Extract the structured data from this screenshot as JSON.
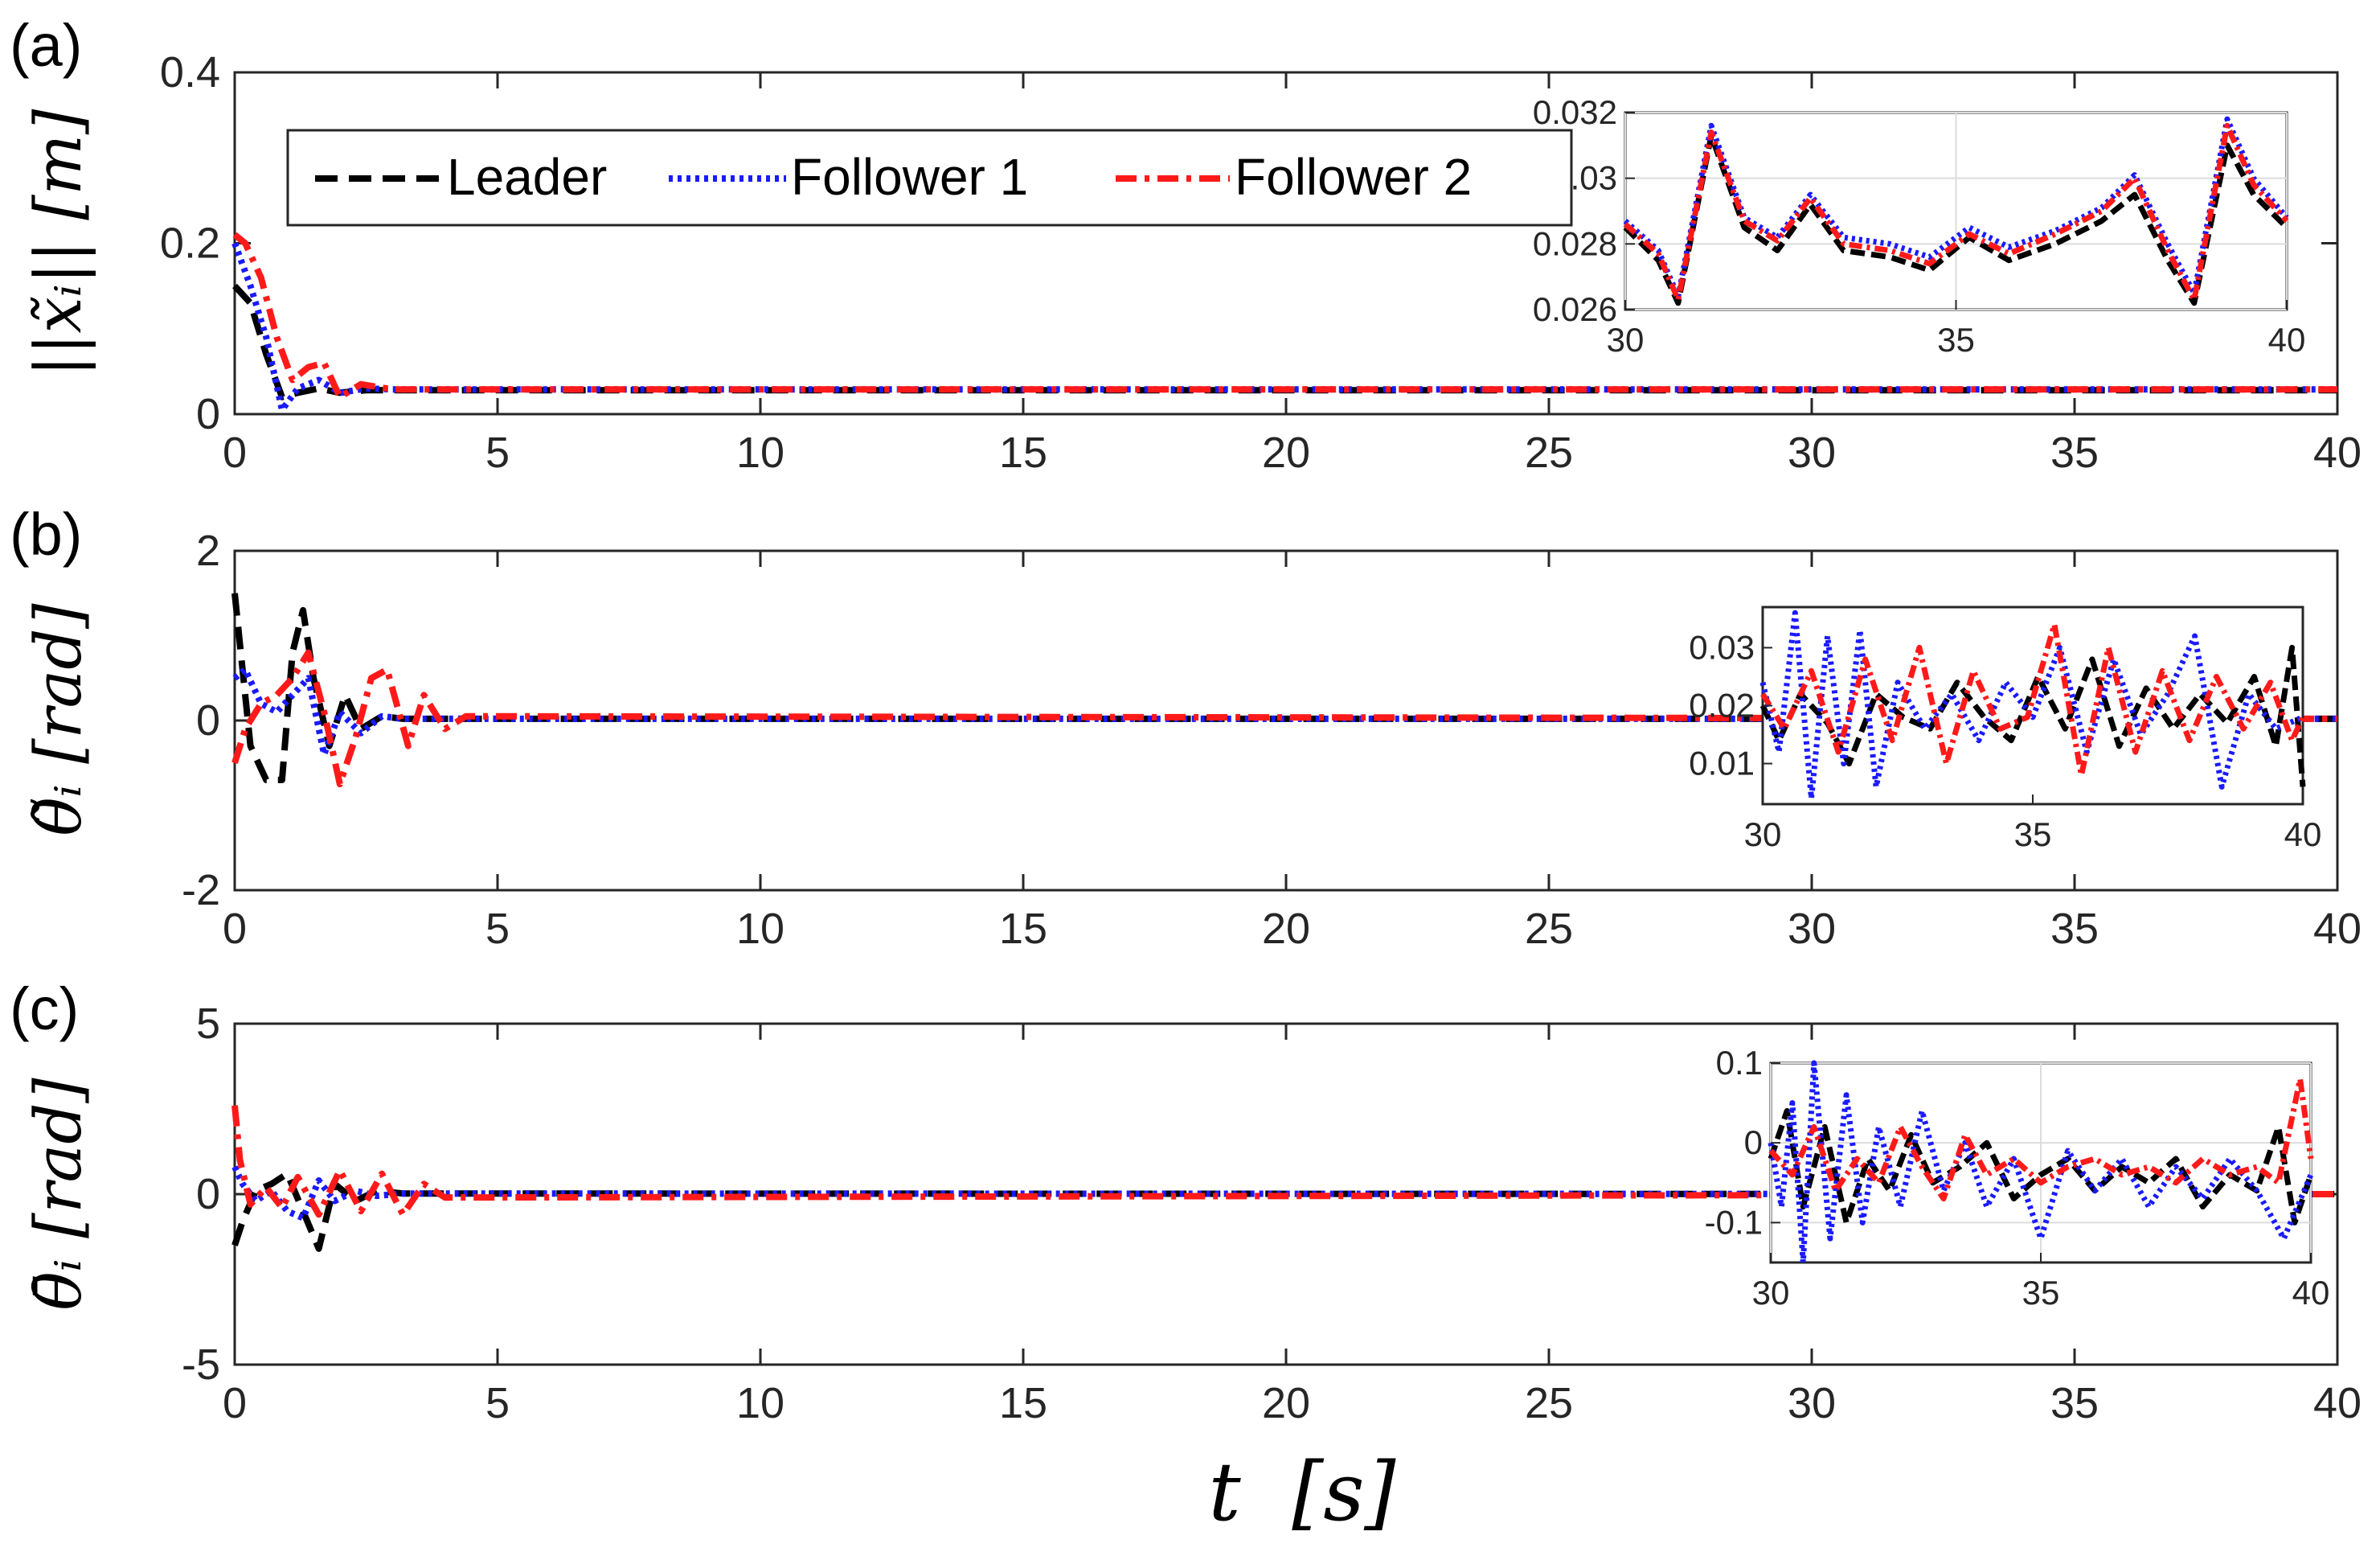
{
  "figure": {
    "xlabel": "t  [s]",
    "legend": {
      "placement": "top-left",
      "entries": [
        "Leader",
        "Follower 1",
        "Follower 2"
      ]
    }
  },
  "colors": {
    "leader": "#000000",
    "follower1": "#1a1aff",
    "follower2": "#ff1a1a",
    "axis": "#262626",
    "grid": "#dcdcdc"
  },
  "chart_data": [
    {
      "type": "line",
      "panel_label": "(a)",
      "ylabel": "||x̃ᵢ|| [m]",
      "xlim": [
        0,
        40
      ],
      "ylim": [
        0,
        0.4
      ],
      "xticks": [
        "0",
        "5",
        "10",
        "15",
        "20",
        "25",
        "30",
        "35",
        "40"
      ],
      "yticks": [
        "0",
        "0.2",
        "0.4"
      ],
      "series": [
        {
          "name": "Leader",
          "style": "dashed",
          "x": [
            0,
            0.3,
            0.6,
            0.9,
            1.2,
            1.6,
            2.0,
            2.5,
            3,
            40
          ],
          "y": [
            0.15,
            0.13,
            0.07,
            0.02,
            0.025,
            0.03,
            0.025,
            0.028,
            0.028,
            0.028
          ]
        },
        {
          "name": "Follower 1",
          "style": "dotted",
          "x": [
            0,
            0.3,
            0.6,
            0.9,
            1.2,
            1.6,
            2.0,
            2.5,
            3,
            40
          ],
          "y": [
            0.2,
            0.15,
            0.09,
            0.005,
            0.03,
            0.04,
            0.025,
            0.03,
            0.029,
            0.029
          ]
        },
        {
          "name": "Follower 2",
          "style": "dashdot",
          "x": [
            0,
            0.2,
            0.5,
            0.8,
            1.1,
            1.4,
            1.7,
            2.0,
            2.4,
            3,
            40
          ],
          "y": [
            0.21,
            0.2,
            0.16,
            0.09,
            0.04,
            0.055,
            0.06,
            0.02,
            0.035,
            0.029,
            0.029
          ]
        }
      ],
      "inset": {
        "xlim": [
          30,
          40
        ],
        "ylim": [
          0.026,
          0.032
        ],
        "xticks": [
          "30",
          "35",
          "40"
        ],
        "yticks": [
          "0.026",
          "0.028",
          "0.03",
          "0.032"
        ],
        "grid": true,
        "series": [
          {
            "name": "Leader",
            "x": [
              30,
              30.5,
              30.8,
              31.3,
              31.8,
              32.3,
              32.8,
              33.3,
              34,
              34.6,
              35.2,
              35.8,
              36.5,
              37.2,
              37.7,
              38.2,
              38.6,
              39.1,
              39.5,
              40
            ],
            "y": [
              0.0285,
              0.0275,
              0.0262,
              0.0313,
              0.0285,
              0.0278,
              0.0292,
              0.0278,
              0.0276,
              0.0272,
              0.0282,
              0.0275,
              0.028,
              0.0287,
              0.0295,
              0.0275,
              0.0262,
              0.031,
              0.0295,
              0.0285
            ]
          },
          {
            "name": "Follower 1",
            "x": [
              30,
              30.5,
              30.8,
              31.3,
              31.8,
              32.3,
              32.8,
              33.3,
              34,
              34.6,
              35.2,
              35.8,
              36.5,
              37.2,
              37.7,
              38.2,
              38.6,
              39.1,
              39.5,
              40
            ],
            "y": [
              0.0287,
              0.0278,
              0.0264,
              0.0316,
              0.0288,
              0.0282,
              0.0295,
              0.0282,
              0.028,
              0.0276,
              0.0285,
              0.0279,
              0.0284,
              0.0291,
              0.0301,
              0.028,
              0.0265,
              0.0318,
              0.03,
              0.0288
            ]
          },
          {
            "name": "Follower 2",
            "x": [
              30,
              30.5,
              30.8,
              31.3,
              31.8,
              32.3,
              32.8,
              33.3,
              34,
              34.6,
              35.2,
              35.8,
              36.5,
              37.2,
              37.7,
              38.2,
              38.6,
              39.1,
              39.5,
              40
            ],
            "y": [
              0.0286,
              0.0277,
              0.0263,
              0.0314,
              0.0287,
              0.0281,
              0.0294,
              0.028,
              0.0278,
              0.0274,
              0.0283,
              0.0277,
              0.0283,
              0.029,
              0.03,
              0.0278,
              0.0263,
              0.0316,
              0.0298,
              0.0287
            ]
          }
        ]
      }
    },
    {
      "type": "line",
      "panel_label": "(b)",
      "ylabel": "θ̃ᵢ [rad]",
      "xlim": [
        0,
        40
      ],
      "ylim": [
        -2,
        2
      ],
      "xticks": [
        "0",
        "5",
        "10",
        "15",
        "20",
        "25",
        "30",
        "35",
        "40"
      ],
      "yticks": [
        "-2",
        "0",
        "2"
      ],
      "series": [
        {
          "name": "Leader",
          "style": "dashed",
          "x": [
            0,
            0.1,
            0.3,
            0.6,
            0.9,
            1.1,
            1.3,
            1.5,
            1.8,
            2.1,
            2.4,
            2.8,
            3.2,
            40
          ],
          "y": [
            1.5,
            0.9,
            -0.3,
            -0.7,
            -0.7,
            0.8,
            1.3,
            0.5,
            -0.3,
            0.3,
            -0.1,
            0.05,
            0.02,
            0.02
          ]
        },
        {
          "name": "Follower 1",
          "style": "dotted",
          "x": [
            0,
            0.2,
            0.5,
            0.8,
            1.1,
            1.4,
            1.7,
            2.0,
            2.4,
            2.8,
            3.2,
            40
          ],
          "y": [
            0.5,
            0.6,
            0.2,
            0.1,
            0.3,
            0.5,
            -0.4,
            0.1,
            -0.15,
            0.05,
            0.02,
            0.02
          ]
        },
        {
          "name": "Follower 2",
          "style": "dashdot",
          "x": [
            0,
            0.2,
            0.5,
            0.8,
            1.1,
            1.4,
            1.7,
            2.0,
            2.3,
            2.6,
            2.9,
            3.3,
            3.6,
            4.0,
            4.4,
            40
          ],
          "y": [
            -0.5,
            -0.1,
            0.2,
            0.3,
            0.5,
            0.8,
            0.1,
            -0.75,
            -0.2,
            0.5,
            0.6,
            -0.3,
            0.3,
            -0.1,
            0.05,
            0.02
          ]
        }
      ],
      "inset": {
        "xlim": [
          30,
          40
        ],
        "ylim": [
          0.003,
          0.037
        ],
        "xticks": [
          "30",
          "35",
          "40"
        ],
        "yticks": [
          "0.01",
          "0.02",
          "0.03"
        ],
        "grid": false,
        "series": [
          {
            "name": "Leader",
            "x": [
              30,
              30.3,
              30.7,
              31.2,
              31.6,
              32.1,
              32.6,
              33.1,
              33.6,
              34.1,
              34.6,
              35.1,
              35.6,
              36.1,
              36.6,
              37.1,
              37.6,
              38.1,
              38.6,
              39.1,
              39.5,
              39.8,
              40
            ],
            "y": [
              0.02,
              0.014,
              0.022,
              0.017,
              0.01,
              0.022,
              0.018,
              0.016,
              0.024,
              0.018,
              0.014,
              0.025,
              0.016,
              0.028,
              0.013,
              0.023,
              0.016,
              0.022,
              0.017,
              0.025,
              0.013,
              0.03,
              0.006
            ]
          },
          {
            "name": "Follower 1",
            "x": [
              30,
              30.3,
              30.6,
              30.9,
              31.2,
              31.5,
              31.8,
              32.1,
              32.5,
              33,
              33.5,
              34,
              34.5,
              35,
              35.5,
              36,
              36.5,
              37,
              37.5,
              38,
              38.5,
              39,
              39.5,
              40
            ],
            "y": [
              0.024,
              0.012,
              0.036,
              0.004,
              0.032,
              0.01,
              0.033,
              0.006,
              0.024,
              0.016,
              0.022,
              0.014,
              0.024,
              0.018,
              0.03,
              0.012,
              0.028,
              0.015,
              0.022,
              0.032,
              0.006,
              0.022,
              0.016,
              0.018
            ]
          },
          {
            "name": "Follower 2",
            "x": [
              30,
              30.4,
              30.9,
              31.4,
              31.9,
              32.4,
              32.9,
              33.4,
              33.9,
              34.4,
              34.9,
              35.4,
              35.9,
              36.4,
              36.9,
              37.4,
              37.9,
              38.4,
              38.9,
              39.4,
              39.8,
              40
            ],
            "y": [
              0.022,
              0.016,
              0.026,
              0.012,
              0.028,
              0.014,
              0.03,
              0.01,
              0.026,
              0.016,
              0.018,
              0.034,
              0.008,
              0.03,
              0.012,
              0.026,
              0.014,
              0.025,
              0.016,
              0.024,
              0.014,
              0.018
            ]
          }
        ]
      }
    },
    {
      "type": "line",
      "panel_label": "(c)",
      "ylabel": "θ̄ᵢ [rad]",
      "xlim": [
        0,
        40
      ],
      "ylim": [
        -5,
        5
      ],
      "xticks": [
        "0",
        "5",
        "10",
        "15",
        "20",
        "25",
        "30",
        "35",
        "40"
      ],
      "yticks": [
        "-5",
        "0",
        "5"
      ],
      "series": [
        {
          "name": "Leader",
          "style": "dashed",
          "x": [
            0,
            0.15,
            0.4,
            0.7,
            1.0,
            1.3,
            1.6,
            1.9,
            2.3,
            2.7,
            3.2,
            40
          ],
          "y": [
            -1.5,
            -0.8,
            0.1,
            0.3,
            0.6,
            -0.5,
            -1.6,
            0.3,
            -0.2,
            0.1,
            0.02,
            0.0
          ]
        },
        {
          "name": "Follower 1",
          "style": "dotted",
          "x": [
            0,
            0.15,
            0.4,
            0.7,
            1.0,
            1.3,
            1.6,
            1.9,
            2.3,
            2.7,
            3.2,
            40
          ],
          "y": [
            0.8,
            0.3,
            -0.2,
            0.1,
            -0.5,
            -0.7,
            0.4,
            -0.2,
            0.1,
            -0.05,
            0.02,
            0.0
          ]
        },
        {
          "name": "Follower 2",
          "style": "dashdot",
          "x": [
            0,
            0.1,
            0.3,
            0.6,
            0.9,
            1.2,
            1.6,
            2.0,
            2.4,
            2.8,
            3.2,
            3.6,
            4.0,
            40
          ],
          "y": [
            2.6,
            1.0,
            -0.3,
            0.2,
            -0.4,
            0.5,
            -0.6,
            0.7,
            -0.5,
            0.6,
            -0.6,
            0.3,
            -0.1,
            0.0
          ]
        }
      ],
      "inset": {
        "xlim": [
          30,
          40
        ],
        "ylim": [
          -0.15,
          0.1
        ],
        "xticks": [
          "30",
          "35",
          "40"
        ],
        "yticks": [
          "-0.1",
          "0",
          "0.1"
        ],
        "grid": true,
        "series": [
          {
            "name": "Leader",
            "x": [
              30,
              30.3,
              30.6,
              31,
              31.4,
              31.8,
              32.2,
              32.6,
              33,
              33.5,
              34,
              34.5,
              35,
              35.5,
              36,
              36.5,
              37,
              37.5,
              38,
              38.5,
              39,
              39.4,
              39.7,
              40
            ],
            "y": [
              -0.02,
              0.04,
              -0.08,
              0.02,
              -0.1,
              -0.02,
              -0.06,
              0.01,
              -0.05,
              -0.03,
              0.0,
              -0.07,
              -0.04,
              -0.02,
              -0.06,
              -0.03,
              -0.05,
              -0.02,
              -0.08,
              -0.04,
              -0.06,
              0.02,
              -0.1,
              -0.04
            ]
          },
          {
            "name": "Follower 1",
            "x": [
              30,
              30.2,
              30.4,
              30.6,
              30.8,
              31.1,
              31.4,
              31.7,
              32,
              32.4,
              32.8,
              33.2,
              33.6,
              34,
              34.5,
              35,
              35.5,
              36,
              36.5,
              37,
              37.5,
              38,
              38.5,
              39,
              39.5,
              40
            ],
            "y": [
              0.0,
              -0.08,
              0.05,
              -0.15,
              0.1,
              -0.12,
              0.06,
              -0.1,
              0.02,
              -0.08,
              0.04,
              -0.06,
              0.0,
              -0.08,
              -0.02,
              -0.12,
              -0.01,
              -0.06,
              -0.02,
              -0.08,
              -0.03,
              -0.07,
              -0.02,
              -0.06,
              -0.12,
              -0.04
            ]
          },
          {
            "name": "Follower 2",
            "x": [
              30,
              30.4,
              30.8,
              31.2,
              31.6,
              32,
              32.4,
              32.8,
              33.2,
              33.6,
              34,
              34.5,
              35,
              35.5,
              36,
              36.5,
              37,
              37.5,
              38,
              38.5,
              39,
              39.4,
              39.8,
              40
            ],
            "y": [
              -0.01,
              -0.04,
              0.02,
              -0.06,
              -0.02,
              -0.05,
              0.02,
              -0.03,
              -0.07,
              0.01,
              -0.04,
              -0.02,
              -0.05,
              -0.03,
              -0.02,
              -0.04,
              -0.03,
              -0.05,
              -0.02,
              -0.04,
              -0.03,
              -0.05,
              0.08,
              -0.02
            ]
          }
        ]
      }
    }
  ]
}
